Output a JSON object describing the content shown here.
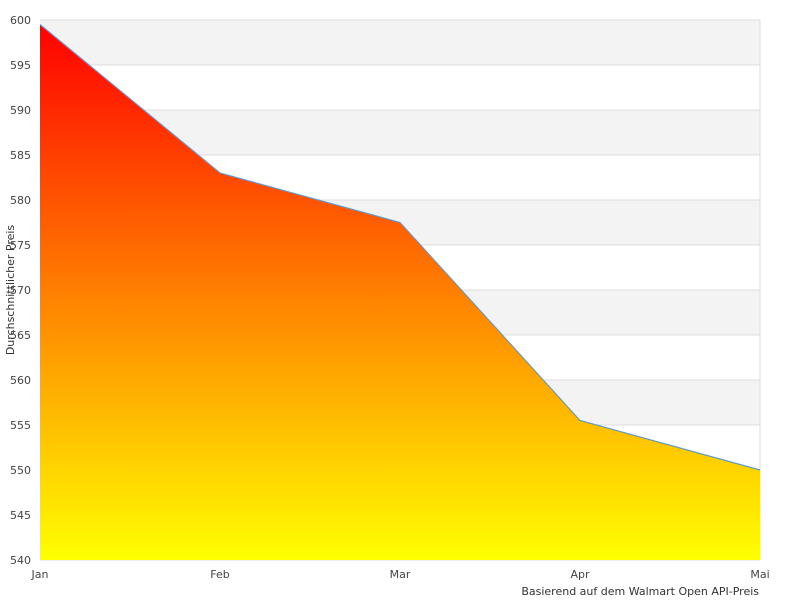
{
  "chart_data": {
    "type": "area",
    "categories": [
      "Jan",
      "Feb",
      "Mar",
      "Apr",
      "Mai"
    ],
    "values": [
      599.5,
      583,
      577.5,
      555.5,
      550
    ],
    "ylabel": "Durchschnittlicher Preis",
    "xlabel": "",
    "ylim": [
      540,
      600
    ],
    "yticks": [
      540,
      545,
      550,
      555,
      560,
      565,
      570,
      575,
      580,
      585,
      590,
      595,
      600
    ],
    "grid": true,
    "caption": "Basierend auf dem Walmart Open API-Preis",
    "fill_gradient": {
      "top": "#ff0000",
      "bottom": "#ffff00"
    },
    "line_color": "#5b9bd5",
    "band_color": "#f3f3f3",
    "grid_color": "#dddddd"
  }
}
